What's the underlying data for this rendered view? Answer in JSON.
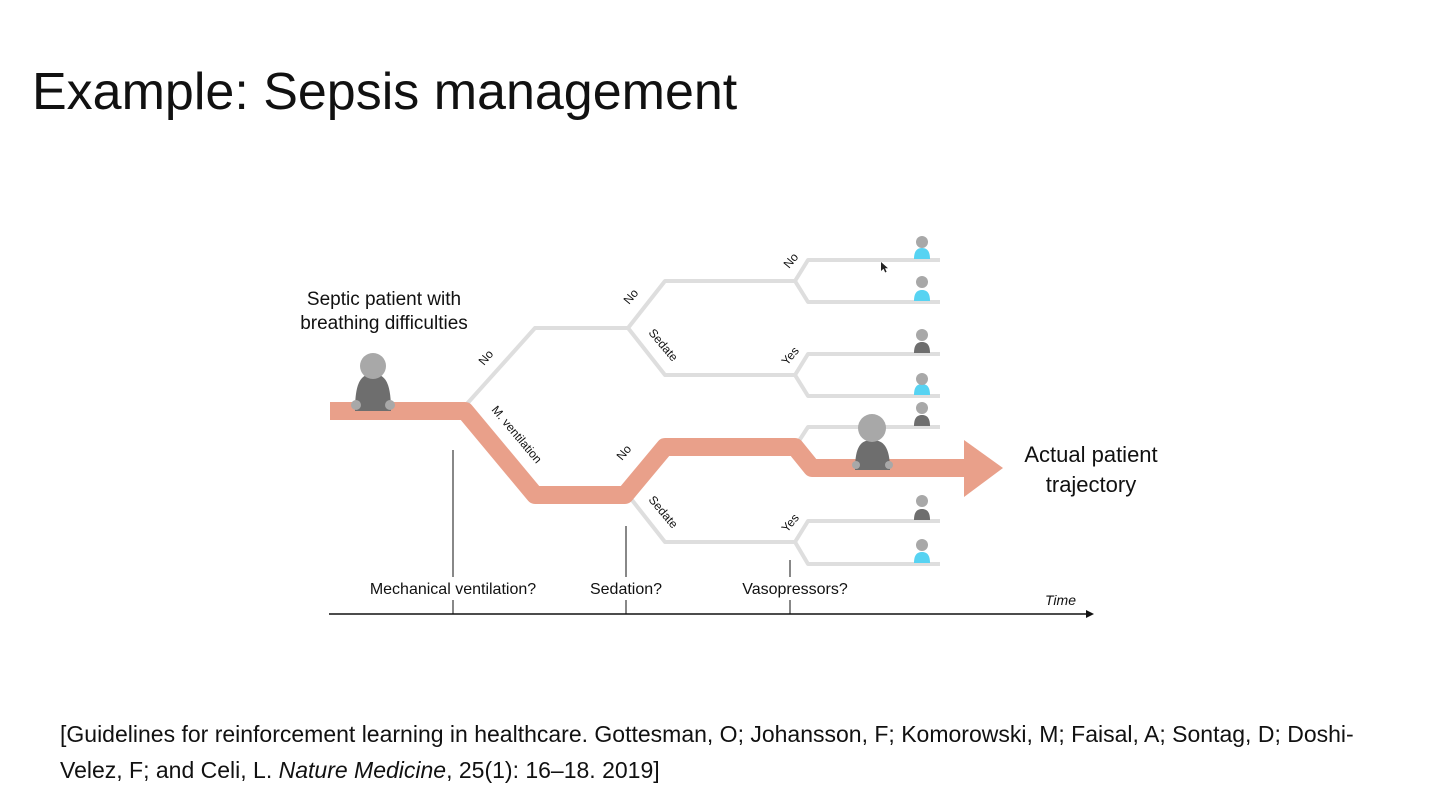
{
  "slide": {
    "title": "Example: Sepsis management"
  },
  "diagram": {
    "start_label_line1": "Septic patient with",
    "start_label_line2": "breathing difficulties",
    "actual_label_line1": "Actual patient",
    "actual_label_line2": "trajectory",
    "branch_labels": {
      "no_first": "No",
      "m_ventilation": "M. ventilation",
      "no_upper_sedation": "No",
      "sedate_upper": "Sedate",
      "no_top_vaso": "No",
      "yes_upper_vaso": "Yes",
      "no_lower_sedation": "No",
      "sedate_lower": "Sedate",
      "yes_lower_vaso": "Yes"
    },
    "timeline": {
      "decision_1": "Mechanical ventilation?",
      "decision_2": "Sedation?",
      "decision_3": "Vasopressors?",
      "axis_label": "Time"
    },
    "outcome_icons": [
      "survived",
      "survived",
      "died",
      "survived",
      "died",
      "died",
      "survived"
    ],
    "colors": {
      "actual_path": "#e9a08a",
      "tree_branch": "#dedede",
      "patient_body": "#6e6e6e",
      "patient_head": "#a8a8a8",
      "survived": "#57d3f2",
      "died": "#6e6e6e"
    }
  },
  "citation": {
    "text_before": "[Guidelines for reinforcement learning in healthcare. Gottesman, O; Johansson, F; Komorowski, M; Faisal, A; Sontag, D; Doshi-Velez, F; and Celi, L. ",
    "journal": "Nature Medicine",
    "text_after": ", 25(1): 16–18. 2019]"
  }
}
